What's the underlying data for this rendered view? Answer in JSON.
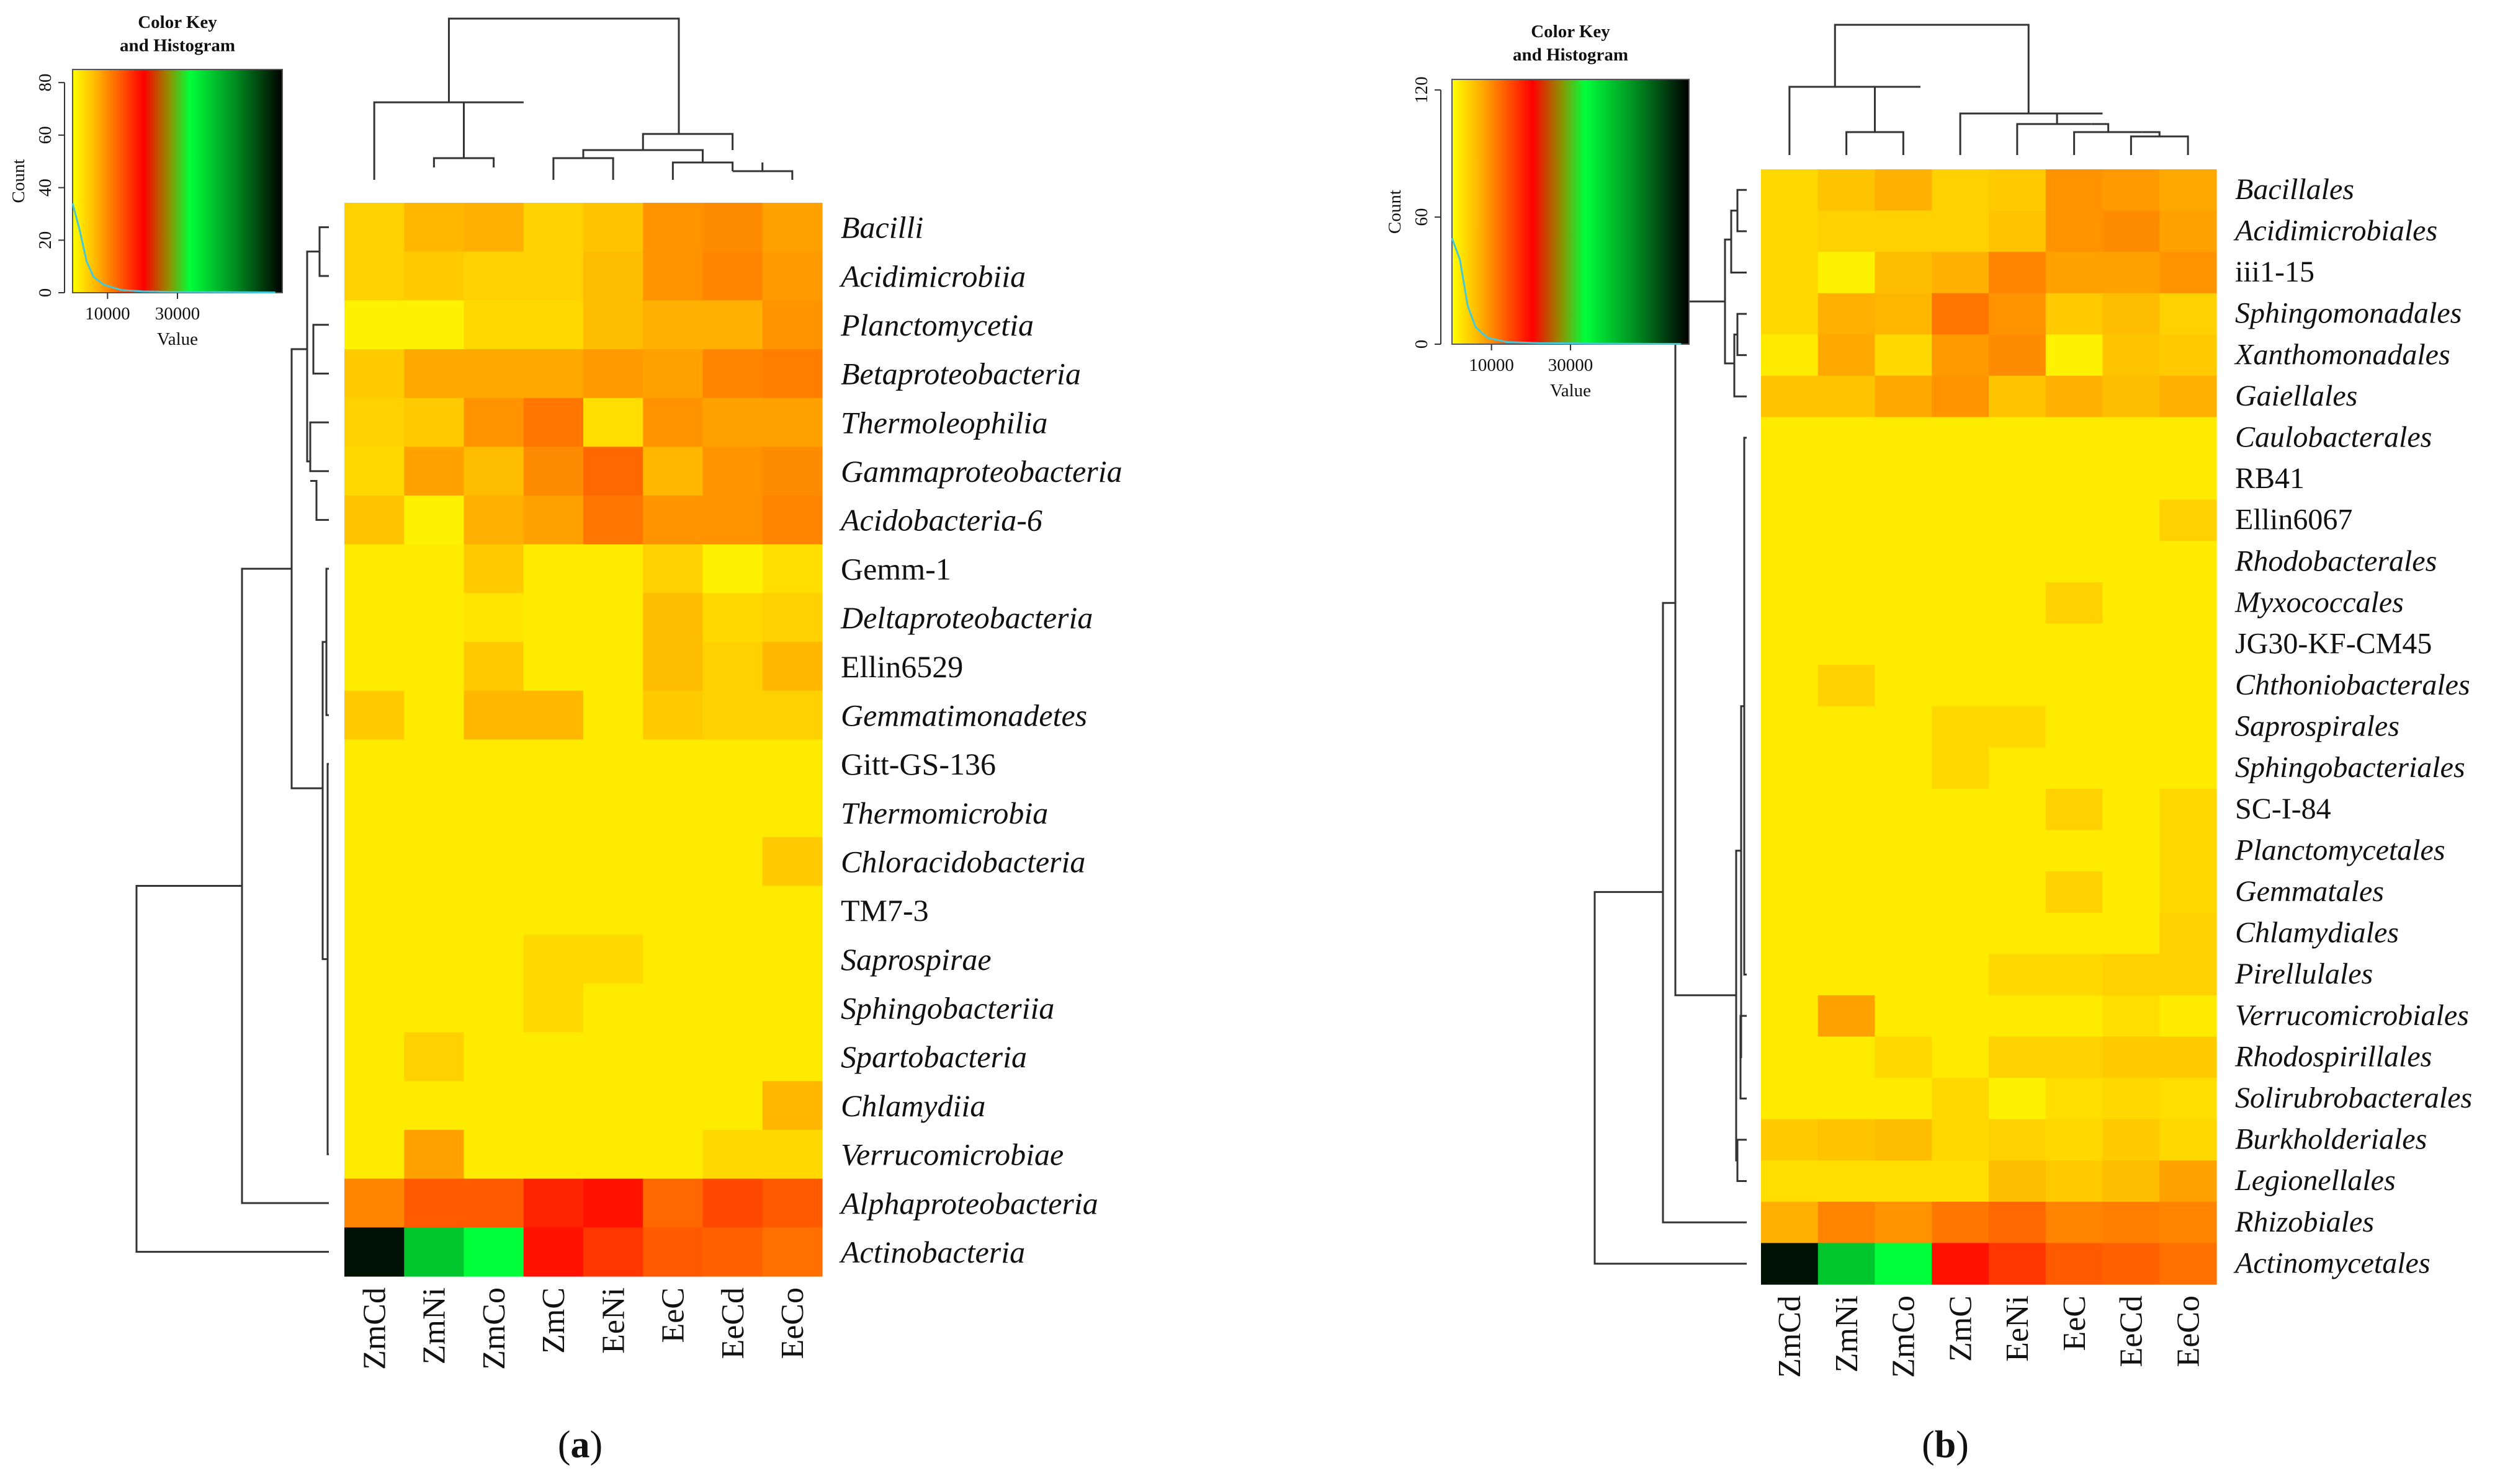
{
  "chart_data": [
    {
      "type": "heatmap",
      "panel_label": "a",
      "columns": [
        "ZmCd",
        "ZmNi",
        "ZmCo",
        "ZmC",
        "EeNi",
        "EeC",
        "EeCd",
        "EeCo"
      ],
      "rows": [
        {
          "label": "Bacilli",
          "italic": true,
          "values": [
            3500,
            5500,
            6000,
            3500,
            4500,
            8000,
            8500,
            7000
          ]
        },
        {
          "label": "Acidimicrobiia",
          "italic": true,
          "values": [
            3500,
            4000,
            3500,
            3500,
            5000,
            8000,
            9000,
            7500
          ]
        },
        {
          "label": "Planctomycetia",
          "italic": true,
          "values": [
            1000,
            1000,
            3000,
            3000,
            5000,
            6000,
            6000,
            8000
          ]
        },
        {
          "label": "Betaproteobacteria",
          "italic": true,
          "values": [
            4000,
            6500,
            6500,
            6500,
            7500,
            7000,
            9000,
            9500
          ]
        },
        {
          "label": "Thermoleophilia",
          "italic": true,
          "values": [
            3500,
            4000,
            8000,
            10000,
            2500,
            8000,
            7000,
            7000
          ]
        },
        {
          "label": "Gammaproteobacteria",
          "italic": true,
          "values": [
            3000,
            7000,
            5000,
            8500,
            11000,
            5500,
            8000,
            8500
          ]
        },
        {
          "label": "Acidobacteria-6",
          "italic": true,
          "values": [
            4500,
            1000,
            6000,
            7000,
            10000,
            8000,
            8000,
            9000
          ]
        },
        {
          "label": "Gemm-1",
          "italic": false,
          "values": [
            1500,
            1500,
            4000,
            1500,
            1500,
            3500,
            1000,
            2500
          ]
        },
        {
          "label": "Deltaproteobacteria",
          "italic": true,
          "values": [
            1500,
            1500,
            2000,
            1500,
            1500,
            5000,
            3000,
            3500
          ]
        },
        {
          "label": "Ellin6529",
          "italic": false,
          "values": [
            1500,
            1500,
            4000,
            1500,
            1500,
            5000,
            3500,
            5500
          ]
        },
        {
          "label": "Gemmatimonadetes",
          "italic": true,
          "values": [
            4000,
            1500,
            5500,
            5500,
            1500,
            4000,
            3500,
            3500
          ]
        },
        {
          "label": "Gitt-GS-136",
          "italic": false,
          "values": [
            1500,
            1500,
            1500,
            1500,
            1500,
            1500,
            1500,
            1500
          ]
        },
        {
          "label": "Thermomicrobia",
          "italic": true,
          "values": [
            1500,
            1500,
            1500,
            1500,
            1500,
            1500,
            1500,
            1500
          ]
        },
        {
          "label": "Chloracidobacteria",
          "italic": true,
          "values": [
            1500,
            1500,
            1500,
            1500,
            1500,
            1500,
            1500,
            4000
          ]
        },
        {
          "label": "TM7-3",
          "italic": false,
          "values": [
            1500,
            1500,
            1500,
            1500,
            1500,
            1500,
            1500,
            1500
          ]
        },
        {
          "label": "Saprospirae",
          "italic": true,
          "values": [
            1500,
            1500,
            1500,
            3000,
            3000,
            1500,
            1500,
            1500
          ]
        },
        {
          "label": "Sphingobacteriia",
          "italic": true,
          "values": [
            1500,
            1500,
            1500,
            3000,
            1500,
            1500,
            1500,
            1500
          ]
        },
        {
          "label": "Spartobacteria",
          "italic": true,
          "values": [
            1500,
            3500,
            1500,
            1500,
            1500,
            1500,
            1500,
            1500
          ]
        },
        {
          "label": "Chlamydiia",
          "italic": true,
          "values": [
            1500,
            1500,
            1500,
            1500,
            1500,
            1500,
            1500,
            5500
          ]
        },
        {
          "label": "Verrucomicrobiae",
          "italic": true,
          "values": [
            1500,
            7000,
            1500,
            1500,
            1500,
            1500,
            3000,
            3000
          ]
        },
        {
          "label": "Alphaproteobacteria",
          "italic": true,
          "values": [
            9000,
            12000,
            12000,
            15000,
            16000,
            11000,
            13000,
            12000
          ]
        },
        {
          "label": "Actinobacteria",
          "italic": true,
          "values": [
            58000,
            38000,
            31000,
            16000,
            14000,
            12000,
            11500,
            10500
          ]
        }
      ],
      "color_key": {
        "title_line1": "Color Key",
        "title_line2": "and Histogram",
        "ylabel": "Count",
        "xlabel": "Value",
        "y_ticks": [
          0,
          20,
          40,
          60,
          80
        ],
        "ylim": [
          0,
          85
        ],
        "x_ticks": [
          10000,
          30000
        ],
        "xlim": [
          0,
          60000
        ]
      }
    },
    {
      "type": "heatmap",
      "panel_label": "b",
      "columns": [
        "ZmCd",
        "ZmNi",
        "ZmCo",
        "ZmC",
        "EeNi",
        "EeC",
        "EeCd",
        "EeCo"
      ],
      "rows": [
        {
          "label": "Bacillales",
          "italic": true,
          "values": [
            3000,
            4500,
            6000,
            3500,
            4000,
            8000,
            7500,
            6500
          ]
        },
        {
          "label": "Acidimicrobiales",
          "italic": true,
          "values": [
            3000,
            3500,
            3500,
            3500,
            4500,
            8000,
            8500,
            7000
          ]
        },
        {
          "label": "iii1-15",
          "italic": false,
          "values": [
            3000,
            1000,
            5000,
            6000,
            9000,
            7000,
            7000,
            8000
          ]
        },
        {
          "label": "Sphingomonadales",
          "italic": true,
          "values": [
            3000,
            6000,
            5500,
            10000,
            8000,
            4000,
            5000,
            3500
          ]
        },
        {
          "label": "Xanthomonadales",
          "italic": true,
          "values": [
            1500,
            6500,
            3000,
            7500,
            8500,
            1000,
            4500,
            4000
          ]
        },
        {
          "label": "Gaiellales",
          "italic": true,
          "values": [
            4500,
            4500,
            6500,
            8000,
            4500,
            6000,
            5000,
            6000
          ]
        },
        {
          "label": "Caulobacterales",
          "italic": true,
          "values": [
            1500,
            1500,
            1500,
            1500,
            1500,
            1500,
            1500,
            1500
          ]
        },
        {
          "label": "RB41",
          "italic": false,
          "values": [
            1500,
            1500,
            1500,
            1500,
            1500,
            1500,
            1500,
            1500
          ]
        },
        {
          "label": "Ellin6067",
          "italic": false,
          "values": [
            1500,
            1500,
            1500,
            1500,
            1500,
            1500,
            1500,
            3500
          ]
        },
        {
          "label": "Rhodobacterales",
          "italic": true,
          "values": [
            1500,
            1500,
            1500,
            1500,
            1500,
            1500,
            1500,
            1500
          ]
        },
        {
          "label": "Myxococcales",
          "italic": true,
          "values": [
            1500,
            1500,
            1500,
            1500,
            1500,
            3500,
            1500,
            1500
          ]
        },
        {
          "label": "JG30-KF-CM45",
          "italic": false,
          "values": [
            1500,
            1500,
            1500,
            1500,
            1500,
            1500,
            1500,
            1500
          ]
        },
        {
          "label": "Chthoniobacterales",
          "italic": true,
          "values": [
            1500,
            3500,
            1500,
            1500,
            1500,
            1500,
            1500,
            1500
          ]
        },
        {
          "label": "Saprospirales",
          "italic": true,
          "values": [
            1500,
            1500,
            1500,
            3000,
            3000,
            1500,
            1500,
            1500
          ]
        },
        {
          "label": "Sphingobacteriales",
          "italic": true,
          "values": [
            1500,
            1500,
            1500,
            3000,
            1500,
            1500,
            1500,
            1500
          ]
        },
        {
          "label": "SC-I-84",
          "italic": false,
          "values": [
            1500,
            1500,
            1500,
            1500,
            1500,
            3500,
            1500,
            3000
          ]
        },
        {
          "label": "Planctomycetales",
          "italic": true,
          "values": [
            1500,
            1500,
            1500,
            1500,
            1500,
            1500,
            1500,
            3000
          ]
        },
        {
          "label": "Gemmatales",
          "italic": true,
          "values": [
            1500,
            1500,
            1500,
            1500,
            1500,
            3500,
            1500,
            3000
          ]
        },
        {
          "label": "Chlamydiales",
          "italic": true,
          "values": [
            1500,
            1500,
            1500,
            1500,
            1500,
            1500,
            1500,
            3500
          ]
        },
        {
          "label": "Pirellulales",
          "italic": true,
          "values": [
            1500,
            1500,
            1500,
            1500,
            3000,
            3000,
            3500,
            3500
          ]
        },
        {
          "label": "Verrucomicrobiales",
          "italic": true,
          "values": [
            1500,
            7000,
            1500,
            1500,
            1500,
            1500,
            2500,
            1500
          ]
        },
        {
          "label": "Rhodospirillales",
          "italic": true,
          "values": [
            1500,
            1500,
            3000,
            1500,
            3500,
            3500,
            4000,
            4000
          ]
        },
        {
          "label": "Solirubrobacterales",
          "italic": true,
          "values": [
            1500,
            1500,
            1500,
            3000,
            1000,
            2500,
            3000,
            2500
          ]
        },
        {
          "label": "Burkholderiales",
          "italic": true,
          "values": [
            4000,
            4500,
            5000,
            3000,
            3500,
            3000,
            4000,
            3000
          ]
        },
        {
          "label": "Legionellales",
          "italic": true,
          "values": [
            2500,
            2500,
            2500,
            2500,
            5000,
            4000,
            5000,
            7000
          ]
        },
        {
          "label": "Rhizobiales",
          "italic": true,
          "values": [
            6000,
            9000,
            8000,
            10000,
            11000,
            9000,
            9500,
            9000
          ]
        },
        {
          "label": "Actinomycetales",
          "italic": true,
          "values": [
            58000,
            38000,
            31000,
            16000,
            14000,
            12000,
            11500,
            10500
          ]
        }
      ],
      "color_key": {
        "title_line1": "Color Key",
        "title_line2": "and Histogram",
        "ylabel": "Count",
        "xlabel": "Value",
        "y_ticks": [
          0,
          60,
          120
        ],
        "ylim": [
          0,
          125
        ],
        "x_ticks": [
          10000,
          30000
        ],
        "xlim": [
          0,
          60000
        ]
      }
    }
  ],
  "colors": {
    "low": "#ffff00",
    "mid_orange": "#ff9a00",
    "red": "#ff0000",
    "green": "#00ff3a",
    "dark": "#000000",
    "histogram_line": "#46c8d8",
    "dendrogram": "#333333"
  }
}
